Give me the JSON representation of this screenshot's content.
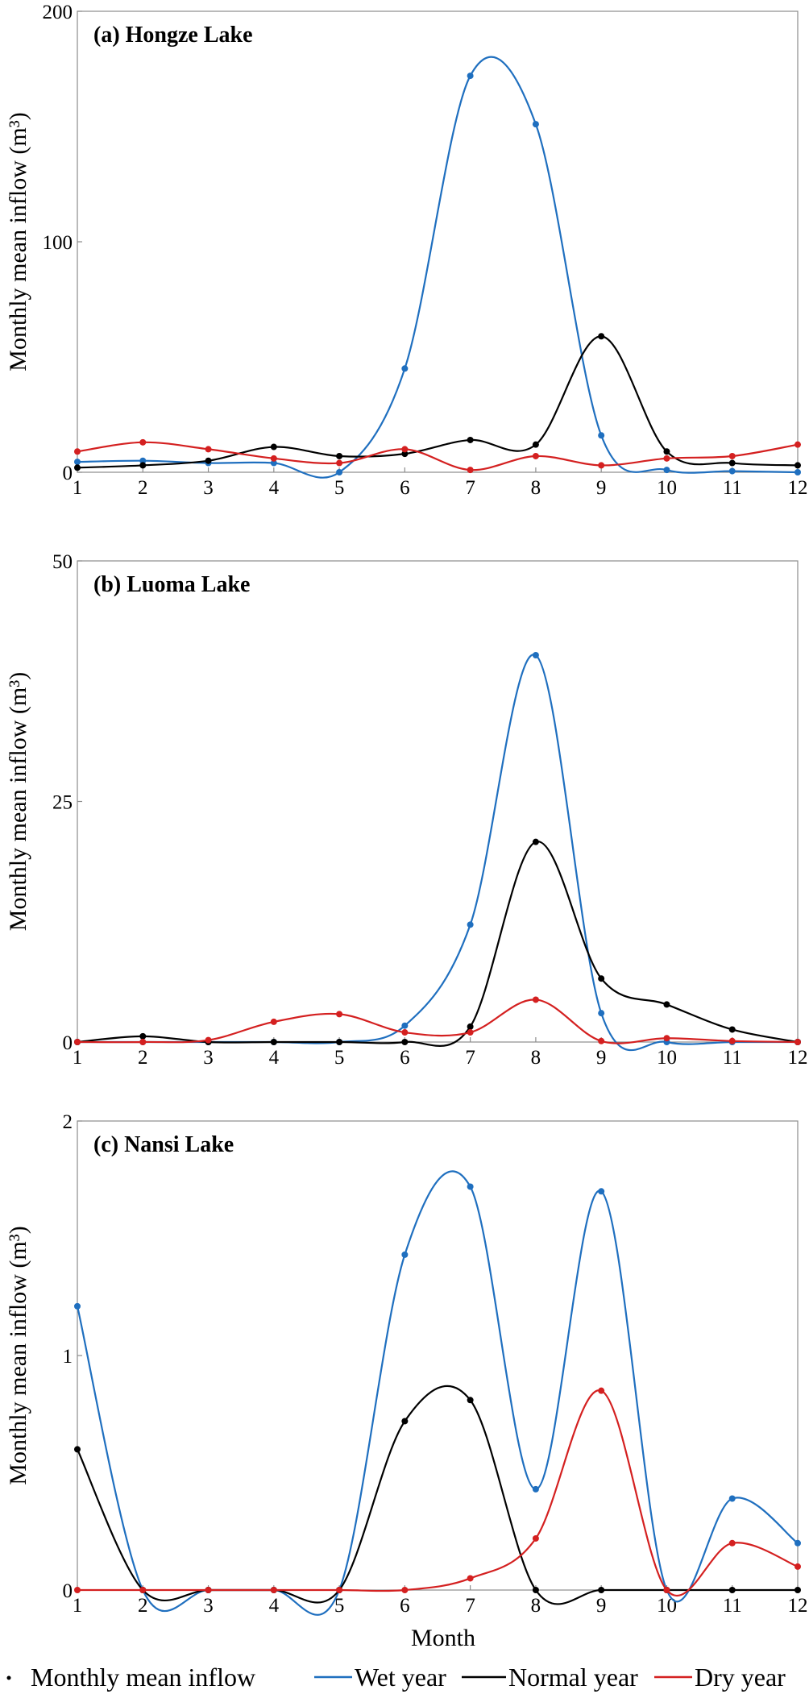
{
  "chart_data": [
    {
      "type": "line",
      "title": "(a) Hongze Lake",
      "xlabel": "",
      "ylabel": "Monthly mean inflow (m³)",
      "x": [
        1,
        2,
        3,
        4,
        5,
        6,
        7,
        8,
        9,
        10,
        11,
        12
      ],
      "ylim": [
        0,
        200
      ],
      "yticks": [
        0,
        100,
        200
      ],
      "grid": false,
      "series": [
        {
          "name": "Wet year",
          "color": "#1f6fbf",
          "values": [
            4.5,
            5,
            4,
            4,
            0,
            45,
            172,
            151,
            16,
            1,
            0.5,
            0
          ]
        },
        {
          "name": "Normal year",
          "color": "#000000",
          "values": [
            2,
            3,
            5,
            11,
            7,
            8,
            14,
            12,
            59,
            9,
            4,
            3
          ]
        },
        {
          "name": "Dry year",
          "color": "#d42020",
          "values": [
            9,
            13,
            10,
            6,
            4,
            10,
            1,
            7,
            3,
            6,
            7,
            12
          ]
        }
      ]
    },
    {
      "type": "line",
      "title": "(b) Luoma Lake",
      "xlabel": "",
      "ylabel": "Monthly mean inflow (m³)",
      "x": [
        1,
        2,
        3,
        4,
        5,
        6,
        7,
        8,
        9,
        10,
        11,
        12
      ],
      "ylim": [
        0,
        50
      ],
      "yticks": [
        0,
        25,
        50
      ],
      "grid": false,
      "series": [
        {
          "name": "Wet year",
          "color": "#1f6fbf",
          "values": [
            0,
            0,
            0,
            0,
            0,
            1.7,
            12.2,
            40.2,
            3,
            0,
            0,
            0
          ]
        },
        {
          "name": "Normal year",
          "color": "#000000",
          "values": [
            0,
            0.6,
            0,
            0,
            0,
            0,
            1.6,
            20.8,
            6.6,
            3.9,
            1.3,
            0
          ]
        },
        {
          "name": "Dry year",
          "color": "#d42020",
          "values": [
            0,
            0,
            0.2,
            2.1,
            2.9,
            1,
            1,
            4.4,
            0.1,
            0.4,
            0.1,
            0
          ]
        }
      ]
    },
    {
      "type": "line",
      "title": "(c) Nansi Lake",
      "xlabel": "Month",
      "ylabel": "Monthly mean inflow (m³)",
      "x": [
        1,
        2,
        3,
        4,
        5,
        6,
        7,
        8,
        9,
        10,
        11,
        12
      ],
      "ylim": [
        0,
        2
      ],
      "yticks": [
        0,
        1,
        2
      ],
      "grid": false,
      "series": [
        {
          "name": "Wet year",
          "color": "#1f6fbf",
          "values": [
            1.21,
            0,
            0,
            0,
            0,
            1.43,
            1.72,
            0.43,
            1.7,
            0,
            0.39,
            0.2
          ]
        },
        {
          "name": "Normal year",
          "color": "#000000",
          "values": [
            0.6,
            0,
            0,
            0,
            0,
            0.72,
            0.81,
            0,
            0,
            0,
            0,
            0
          ]
        },
        {
          "name": "Dry year",
          "color": "#d42020",
          "values": [
            0,
            0,
            0,
            0,
            0,
            0,
            0.05,
            0.22,
            0.85,
            0,
            0.2,
            0.1
          ]
        }
      ]
    }
  ],
  "legend": {
    "position": "bottom",
    "items": [
      {
        "label": "Monthly mean inflow",
        "marker": "dot",
        "color": "#000000"
      },
      {
        "label": "Wet year",
        "marker": "line",
        "color": "#1f6fbf"
      },
      {
        "label": "Normal year",
        "marker": "line",
        "color": "#000000"
      },
      {
        "label": "Dry year",
        "marker": "line",
        "color": "#d42020"
      }
    ]
  }
}
